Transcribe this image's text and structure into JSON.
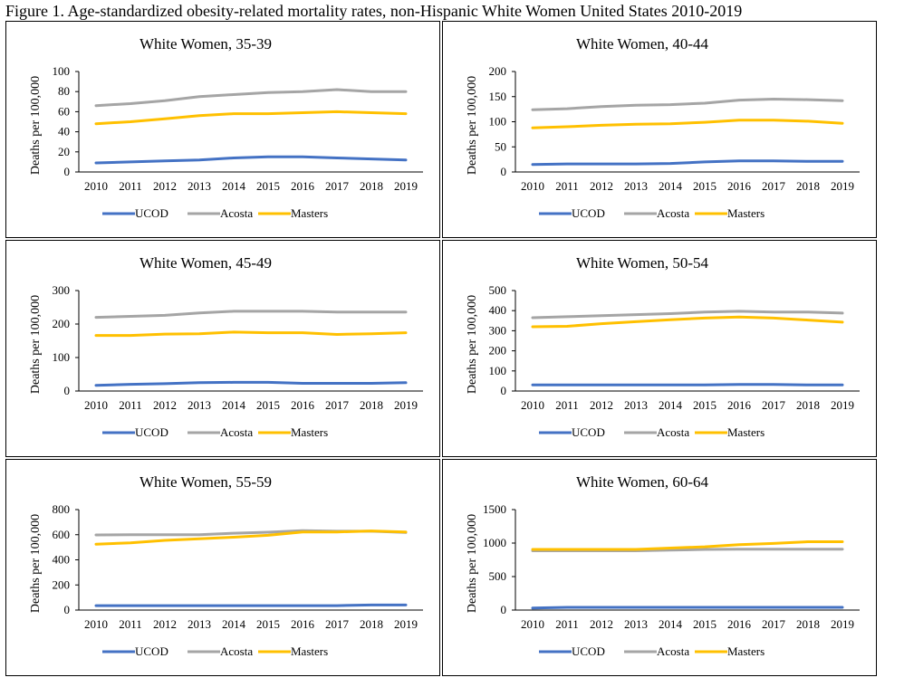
{
  "figure_title": "Figure 1. Age-standardized obesity-related mortality rates, non-Hispanic White Women United States 2010-2019",
  "colors": {
    "UCOD": "#4472C4",
    "Acosta": "#A5A5A5",
    "Masters": "#FFC000"
  },
  "chart_data": [
    {
      "type": "line",
      "title": "White Women, 35-39",
      "ylabel": "Deaths per 100,000",
      "xlabel": "",
      "x": [
        "2010",
        "2011",
        "2012",
        "2013",
        "2014",
        "2015",
        "2016",
        "2017",
        "2018",
        "2019"
      ],
      "ylim": [
        0,
        100
      ],
      "yticks": [
        0,
        20,
        40,
        60,
        80,
        100
      ],
      "legend": "bottom",
      "grid": false,
      "series": [
        {
          "name": "UCOD",
          "values": [
            9,
            10,
            11,
            12,
            14,
            15,
            15,
            14,
            13,
            12
          ]
        },
        {
          "name": "Acosta",
          "values": [
            66,
            68,
            71,
            75,
            77,
            79,
            80,
            82,
            80,
            80
          ]
        },
        {
          "name": "Masters",
          "values": [
            48,
            50,
            53,
            56,
            58,
            58,
            59,
            60,
            59,
            58
          ]
        }
      ]
    },
    {
      "type": "line",
      "title": "White Women, 40-44",
      "ylabel": "Deaths per 100,000",
      "xlabel": "",
      "x": [
        "2010",
        "2011",
        "2012",
        "2013",
        "2014",
        "2015",
        "2016",
        "2017",
        "2018",
        "2019"
      ],
      "ylim": [
        0,
        200
      ],
      "yticks": [
        0,
        50,
        100,
        150,
        200
      ],
      "legend": "bottom",
      "grid": false,
      "series": [
        {
          "name": "UCOD",
          "values": [
            15,
            16,
            16,
            16,
            17,
            20,
            22,
            22,
            21,
            21
          ]
        },
        {
          "name": "Acosta",
          "values": [
            124,
            126,
            130,
            133,
            134,
            137,
            143,
            145,
            144,
            142
          ]
        },
        {
          "name": "Masters",
          "values": [
            88,
            90,
            93,
            95,
            96,
            99,
            103,
            103,
            101,
            97
          ]
        }
      ]
    },
    {
      "type": "line",
      "title": "White Women, 45-49",
      "ylabel": "Deaths per 100,000",
      "xlabel": "",
      "x": [
        "2010",
        "2011",
        "2012",
        "2013",
        "2014",
        "2015",
        "2016",
        "2017",
        "2018",
        "2019"
      ],
      "ylim": [
        0,
        300
      ],
      "yticks": [
        0,
        100,
        200,
        300
      ],
      "legend": "bottom",
      "grid": false,
      "series": [
        {
          "name": "UCOD",
          "values": [
            17,
            20,
            22,
            25,
            26,
            26,
            23,
            23,
            23,
            25
          ]
        },
        {
          "name": "Acosta",
          "values": [
            220,
            223,
            226,
            233,
            238,
            238,
            238,
            236,
            236,
            236
          ]
        },
        {
          "name": "Masters",
          "values": [
            166,
            166,
            170,
            171,
            176,
            174,
            174,
            169,
            171,
            174
          ]
        }
      ]
    },
    {
      "type": "line",
      "title": "White Women, 50-54",
      "ylabel": "Deaths per 100,000",
      "xlabel": "",
      "x": [
        "2010",
        "2011",
        "2012",
        "2013",
        "2014",
        "2015",
        "2016",
        "2017",
        "2018",
        "2019"
      ],
      "ylim": [
        0,
        500
      ],
      "yticks": [
        0,
        100,
        200,
        300,
        400,
        500
      ],
      "legend": "bottom",
      "grid": false,
      "series": [
        {
          "name": "UCOD",
          "values": [
            30,
            30,
            30,
            30,
            30,
            30,
            33,
            33,
            30,
            30
          ]
        },
        {
          "name": "Acosta",
          "values": [
            365,
            370,
            375,
            380,
            385,
            393,
            397,
            393,
            393,
            388
          ]
        },
        {
          "name": "Masters",
          "values": [
            320,
            322,
            335,
            345,
            355,
            363,
            368,
            363,
            353,
            343
          ]
        }
      ]
    },
    {
      "type": "line",
      "title": "White Women, 55-59",
      "ylabel": "Deaths per 100,000",
      "xlabel": "",
      "x": [
        "2010",
        "2011",
        "2012",
        "2013",
        "2014",
        "2015",
        "2016",
        "2017",
        "2018",
        "2019"
      ],
      "ylim": [
        0,
        800
      ],
      "yticks": [
        0,
        200,
        400,
        600,
        800
      ],
      "legend": "bottom",
      "grid": false,
      "series": [
        {
          "name": "UCOD",
          "values": [
            35,
            35,
            35,
            35,
            35,
            35,
            35,
            35,
            40,
            40
          ]
        },
        {
          "name": "Acosta",
          "values": [
            598,
            600,
            600,
            600,
            612,
            620,
            632,
            628,
            628,
            618
          ]
        },
        {
          "name": "Masters",
          "values": [
            525,
            535,
            555,
            568,
            580,
            595,
            622,
            622,
            630,
            622
          ]
        }
      ]
    },
    {
      "type": "line",
      "title": "White Women, 60-64",
      "ylabel": "Deaths per 100,000",
      "xlabel": "",
      "x": [
        "2010",
        "2011",
        "2012",
        "2013",
        "2014",
        "2015",
        "2016",
        "2017",
        "2018",
        "2019"
      ],
      "ylim": [
        0,
        1500
      ],
      "yticks": [
        0,
        500,
        1000,
        1500
      ],
      "legend": "bottom",
      "grid": false,
      "series": [
        {
          "name": "UCOD",
          "values": [
            30,
            40,
            40,
            40,
            40,
            40,
            40,
            40,
            40,
            40
          ]
        },
        {
          "name": "Acosta",
          "values": [
            885,
            885,
            885,
            885,
            895,
            905,
            910,
            910,
            910,
            910
          ]
        },
        {
          "name": "Masters",
          "values": [
            905,
            905,
            905,
            905,
            925,
            945,
            975,
            995,
            1020,
            1020
          ]
        }
      ]
    }
  ]
}
